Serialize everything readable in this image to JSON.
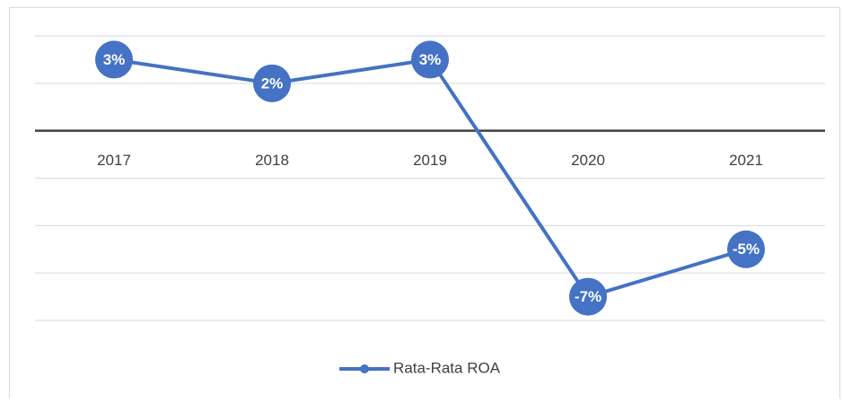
{
  "chart_data": {
    "type": "line",
    "categories": [
      "2017",
      "2018",
      "2019",
      "2020",
      "2021"
    ],
    "series": [
      {
        "name": "Rata-Rata ROA",
        "color": "#4472c4",
        "values": [
          3,
          2,
          3,
          -7,
          -5
        ],
        "value_labels": [
          "3%",
          "2%",
          "3%",
          "-7%",
          "-5%"
        ]
      }
    ],
    "ylim": [
      -8,
      4
    ],
    "yticks": [
      -8,
      -6,
      -4,
      -2,
      0,
      2,
      4
    ],
    "grid": true
  }
}
